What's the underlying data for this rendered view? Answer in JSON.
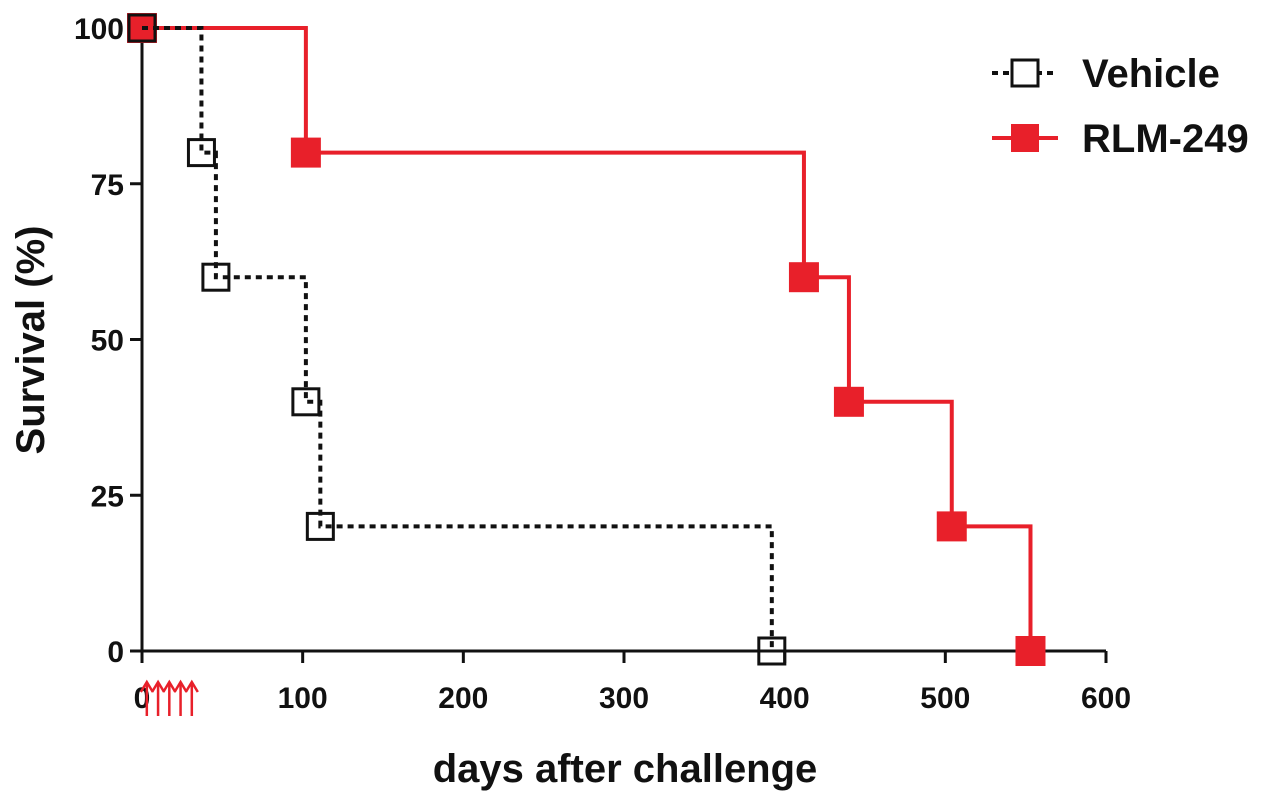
{
  "chart_data": {
    "type": "line",
    "subtype": "kaplan-meier step",
    "title": "",
    "xlabel": "days after challenge",
    "ylabel": "Survival (%)",
    "xlim": [
      0,
      600
    ],
    "ylim": [
      0,
      100
    ],
    "xticks": [
      "0",
      "100",
      "200",
      "300",
      "400",
      "500",
      "600"
    ],
    "yticks": [
      "0",
      "25",
      "50",
      "75",
      "100"
    ],
    "grid": false,
    "legend_position": "top-right",
    "series": [
      {
        "name": "Vehicle",
        "color": "#111111",
        "line_style": "dotted",
        "marker": "open-square",
        "points": [
          {
            "x": 0,
            "y": 100
          },
          {
            "x": 37,
            "y": 80
          },
          {
            "x": 46,
            "y": 60
          },
          {
            "x": 102,
            "y": 40
          },
          {
            "x": 111,
            "y": 20
          },
          {
            "x": 392,
            "y": 0
          }
        ]
      },
      {
        "name": "RLM-249",
        "color": "#e8202a",
        "line_style": "solid",
        "marker": "filled-square",
        "points": [
          {
            "x": 0,
            "y": 100
          },
          {
            "x": 102,
            "y": 80
          },
          {
            "x": 412,
            "y": 60
          },
          {
            "x": 440,
            "y": 40
          },
          {
            "x": 504,
            "y": 20
          },
          {
            "x": 553,
            "y": 0
          }
        ]
      }
    ],
    "treatment_arrows": {
      "color": "#e8202a",
      "x_days": [
        3,
        10,
        17,
        24,
        31
      ]
    }
  }
}
